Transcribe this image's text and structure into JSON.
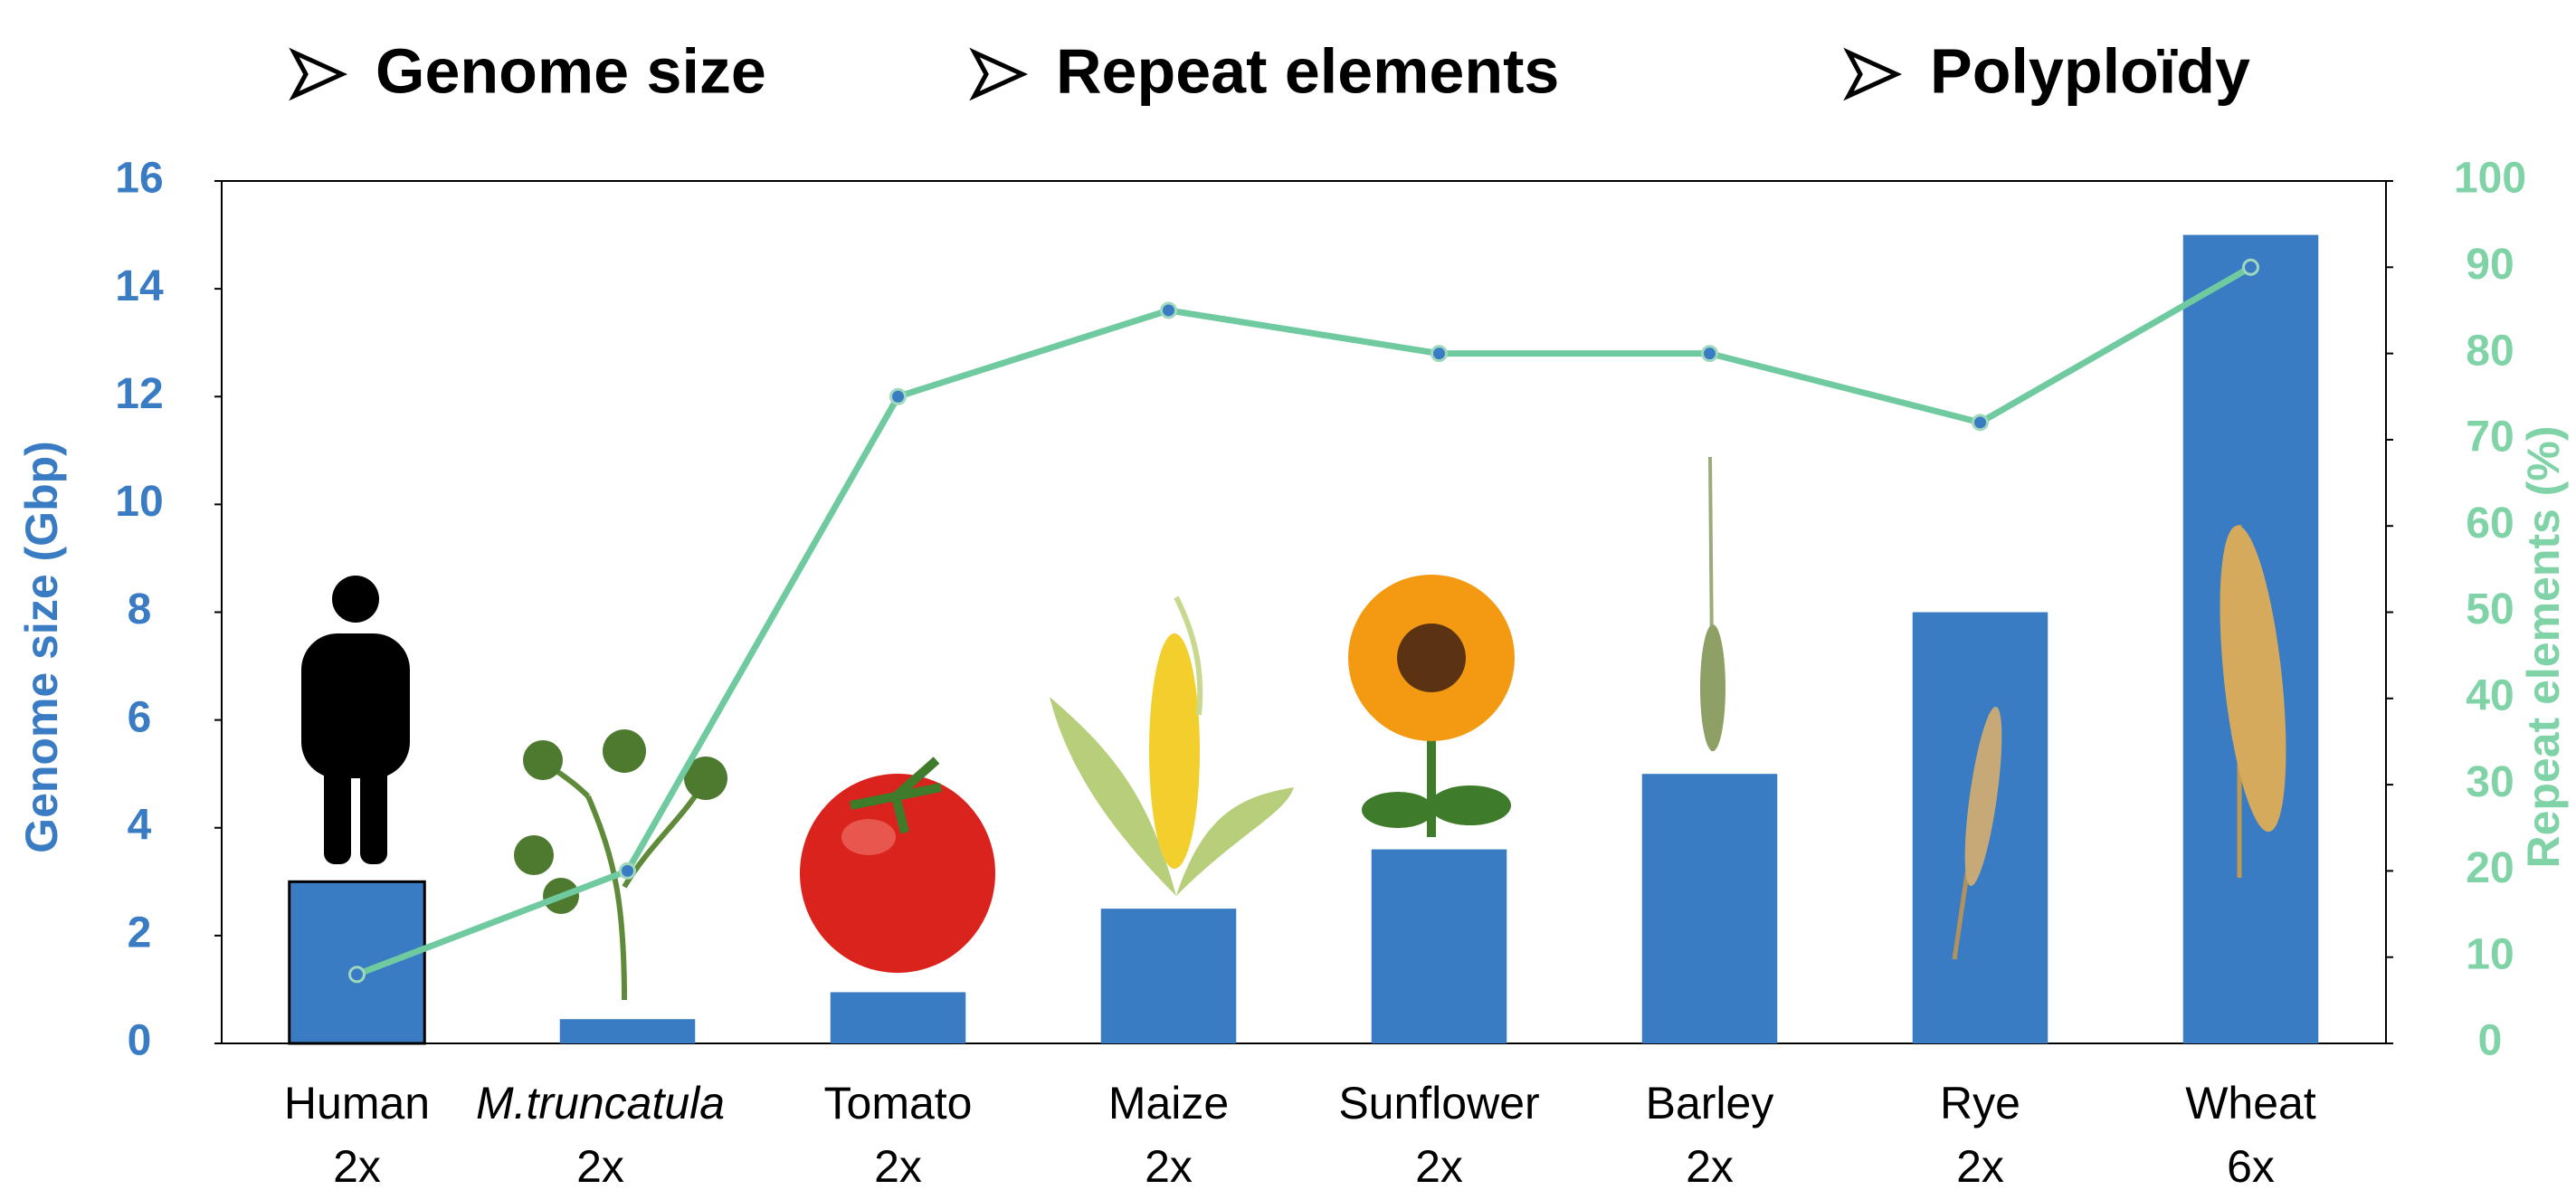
{
  "chart_data": {
    "type": "bar",
    "headers": [
      "Genome size",
      "Repeat elements",
      "Polyploïdy"
    ],
    "y_label": "Genome size (Gbp)",
    "y2_label": "Repeat elements (%)",
    "categories": [
      "Human",
      "M.truncatula",
      "Tomato",
      "Maize",
      "Sunflower",
      "Barley",
      "Rye",
      "Wheat"
    ],
    "ploidy": [
      "2x",
      "2x",
      "2x",
      "2x",
      "2x",
      "2x",
      "2x",
      "6x"
    ],
    "series": [
      {
        "type": "bar",
        "color": "#3a7cc4",
        "axis": "y",
        "values": [
          3.0,
          0.45,
          0.95,
          2.5,
          3.6,
          5.0,
          8.0,
          15.0
        ]
      },
      {
        "type": "line",
        "color": "#6fcaa0",
        "axis": "y2",
        "values": [
          8,
          20,
          75,
          85,
          80,
          80,
          72,
          90
        ]
      }
    ],
    "ylim": [
      0,
      16
    ],
    "yticks": [
      0,
      2,
      4,
      6,
      8,
      10,
      12,
      14,
      16
    ],
    "y2lim": [
      0,
      100
    ],
    "y2ticks": [
      0,
      10,
      20,
      30,
      40,
      50,
      60,
      70,
      80,
      90,
      100
    ],
    "grid": false
  }
}
